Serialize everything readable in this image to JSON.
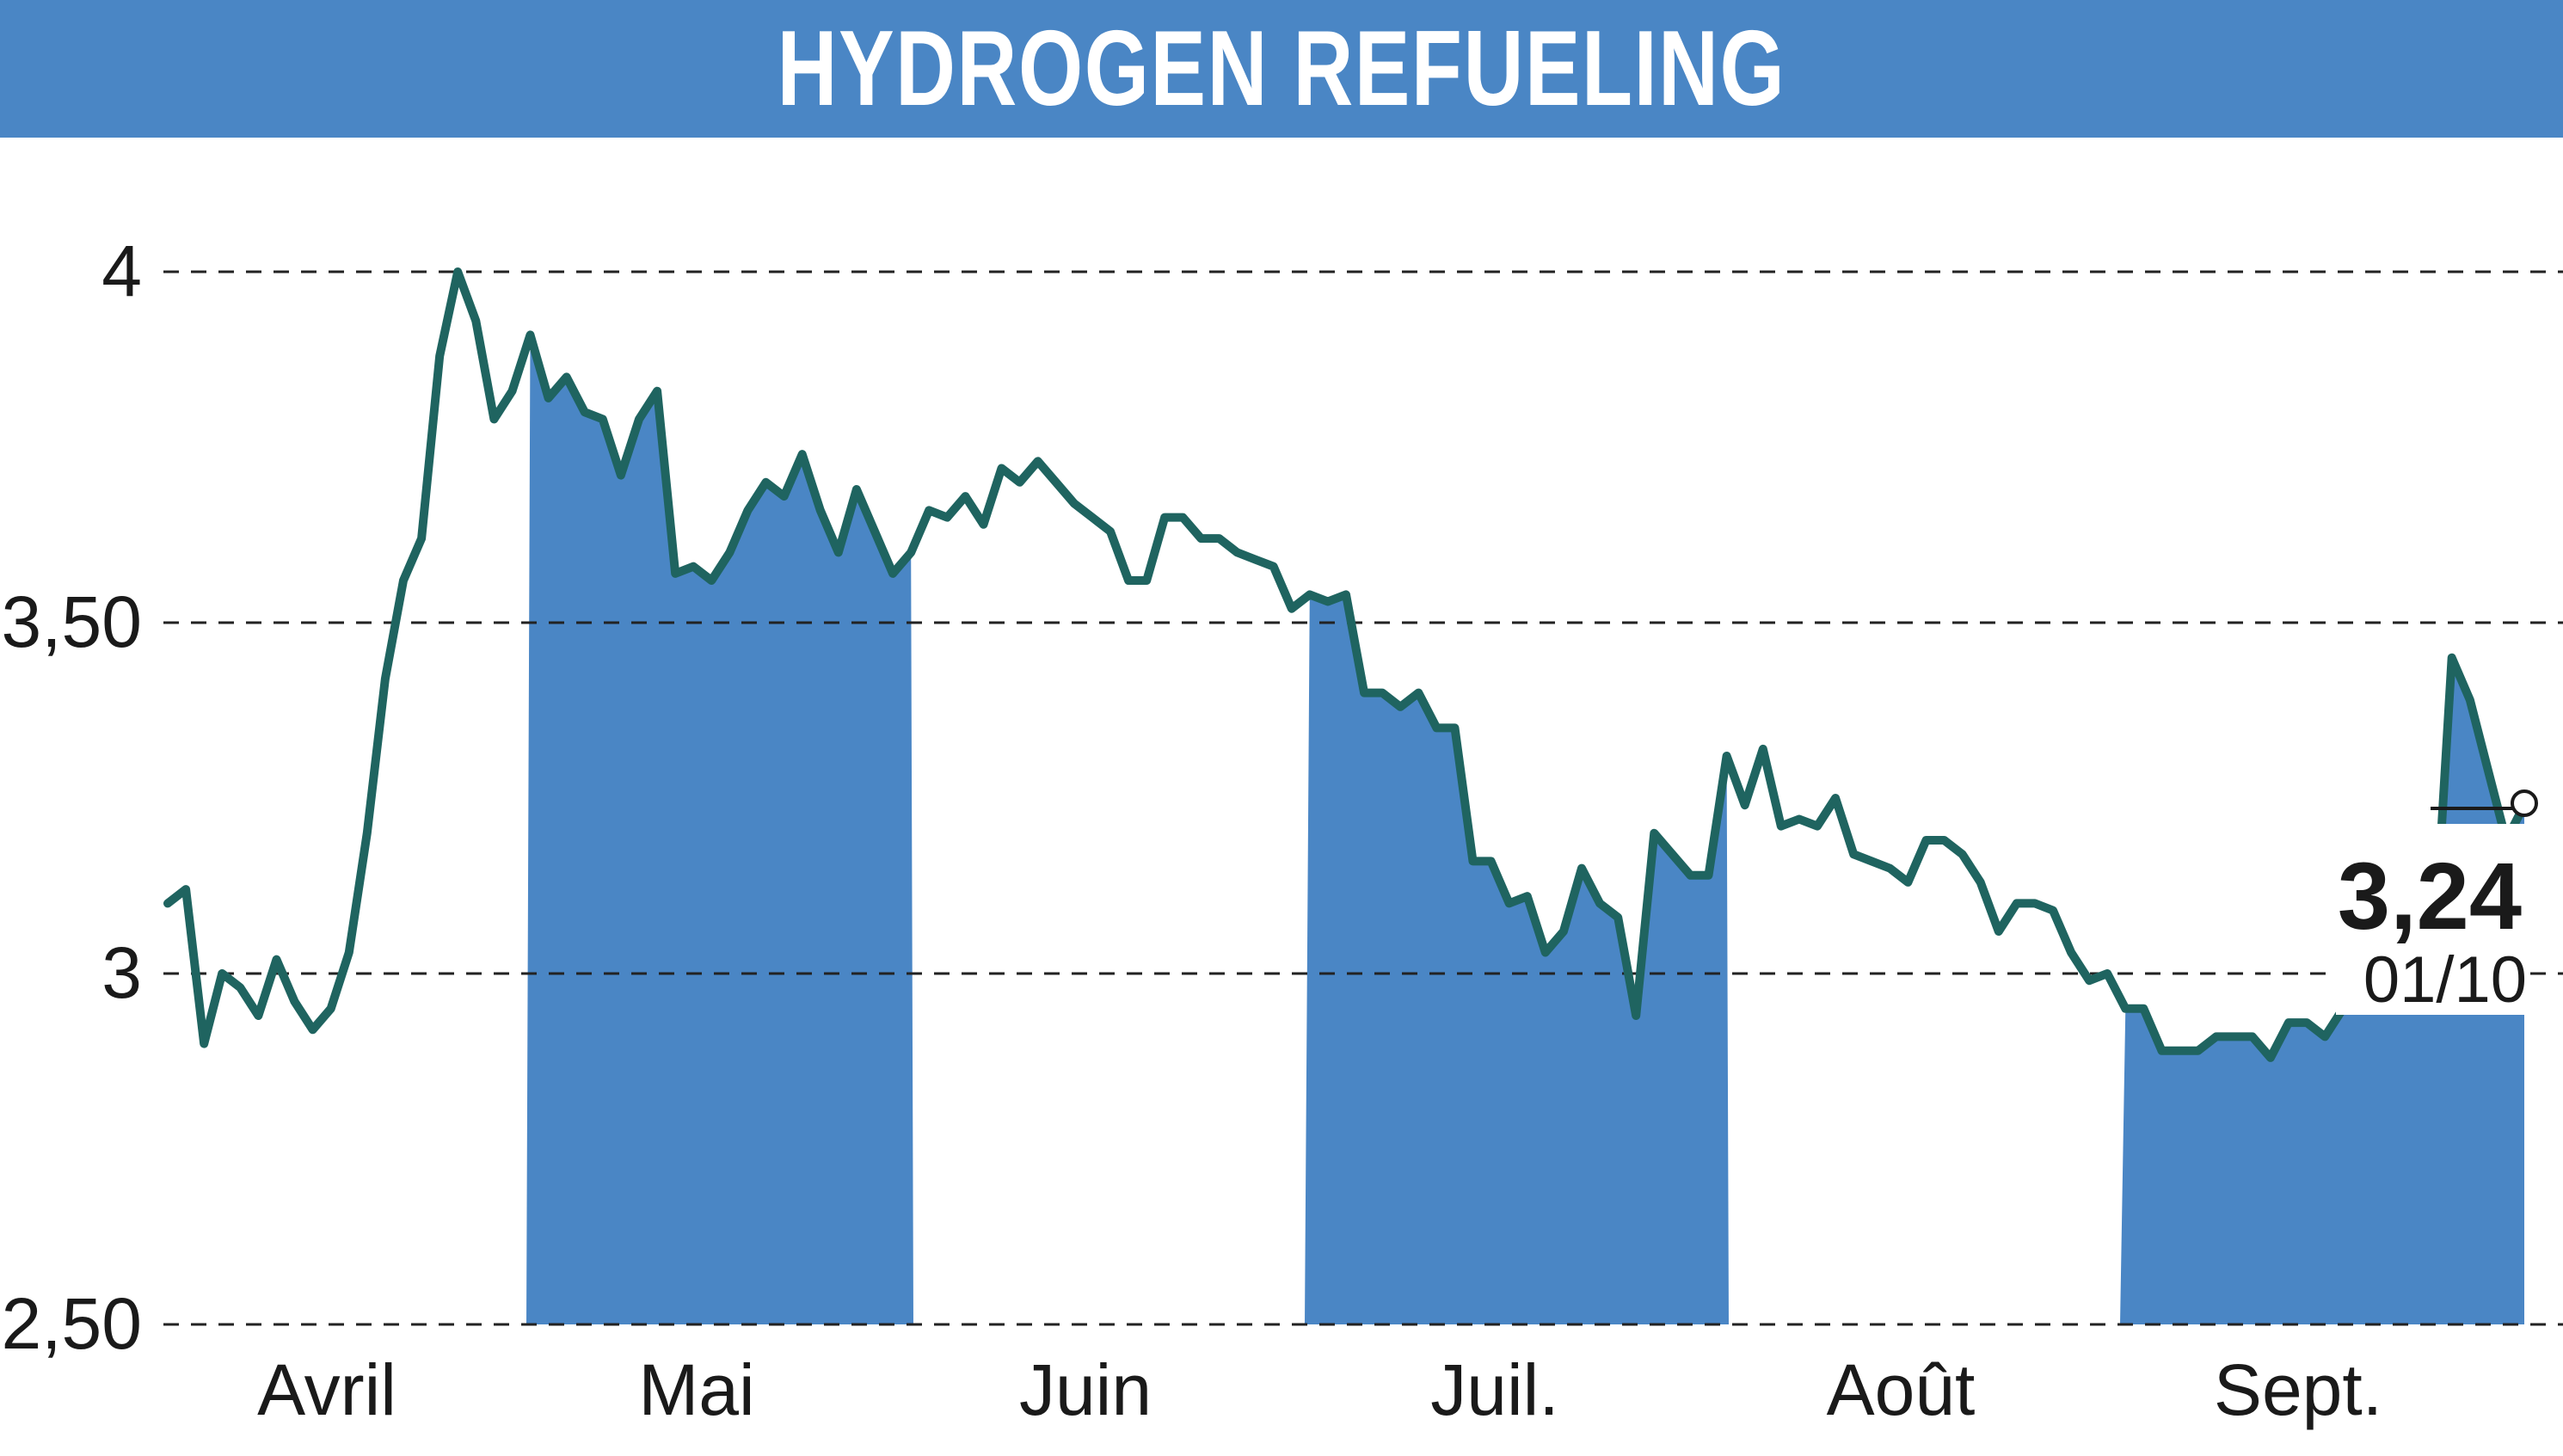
{
  "header": {
    "title": "HYDROGEN REFUELING"
  },
  "colors": {
    "header_bg": "#4a86c5",
    "band_fill": "#4a86c5",
    "line": "#1f6460",
    "grid": "#222222",
    "text": "#1a1a1a"
  },
  "chart_data": {
    "type": "line",
    "title": "HYDROGEN REFUELING",
    "xlabel": "",
    "ylabel": "",
    "ylim": [
      2.5,
      4.0
    ],
    "y_ticks": [
      {
        "value": 4.0,
        "label": "4"
      },
      {
        "value": 3.5,
        "label": "3,50"
      },
      {
        "value": 3.0,
        "label": "3"
      },
      {
        "value": 2.5,
        "label": "2,50"
      }
    ],
    "grid": "horizontal dashed",
    "months": [
      {
        "label": "Avril",
        "shaded": false
      },
      {
        "label": "Mai",
        "shaded": true
      },
      {
        "label": "Juin",
        "shaded": false
      },
      {
        "label": "Juil.",
        "shaded": true
      },
      {
        "label": "Août",
        "shaded": false
      },
      {
        "label": "Sept.",
        "shaded": true
      }
    ],
    "values": [
      3.1,
      3.12,
      2.9,
      3.0,
      2.98,
      2.94,
      3.02,
      2.96,
      2.92,
      2.95,
      3.03,
      3.2,
      3.42,
      3.56,
      3.62,
      3.88,
      4.0,
      3.93,
      3.79,
      3.83,
      3.91,
      3.82,
      3.85,
      3.8,
      3.79,
      3.71,
      3.79,
      3.83,
      3.57,
      3.58,
      3.56,
      3.6,
      3.66,
      3.7,
      3.68,
      3.74,
      3.66,
      3.6,
      3.69,
      3.63,
      3.57,
      3.6,
      3.66,
      3.65,
      3.68,
      3.64,
      3.72,
      3.7,
      3.73,
      3.7,
      3.67,
      3.65,
      3.63,
      3.56,
      3.56,
      3.65,
      3.65,
      3.62,
      3.62,
      3.6,
      3.59,
      3.58,
      3.52,
      3.54,
      3.53,
      3.54,
      3.4,
      3.4,
      3.38,
      3.4,
      3.35,
      3.35,
      3.16,
      3.16,
      3.1,
      3.11,
      3.03,
      3.06,
      3.15,
      3.1,
      3.08,
      2.94,
      3.2,
      3.17,
      3.14,
      3.14,
      3.31,
      3.24,
      3.32,
      3.21,
      3.22,
      3.21,
      3.25,
      3.17,
      3.16,
      3.15,
      3.13,
      3.19,
      3.19,
      3.17,
      3.13,
      3.06,
      3.1,
      3.1,
      3.09,
      3.03,
      2.99,
      3.0,
      2.95,
      2.95,
      2.89,
      2.89,
      2.89,
      2.91,
      2.91,
      2.91,
      2.88,
      2.93,
      2.93,
      2.91,
      2.95,
      2.96,
      3.0,
      3.0,
      3.01,
      3.02,
      3.45,
      3.39,
      3.29,
      3.19,
      3.24
    ],
    "last_value_label": "3,24",
    "last_date_label": "01/10"
  }
}
